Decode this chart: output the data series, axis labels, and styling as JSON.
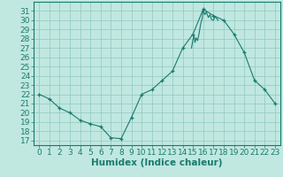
{
  "x": [
    0,
    1,
    2,
    3,
    4,
    5,
    6,
    7,
    8,
    9,
    10,
    11,
    12,
    13,
    14,
    15,
    16,
    17,
    18,
    19,
    20,
    21,
    22,
    23
  ],
  "y": [
    22.0,
    21.5,
    20.5,
    20.0,
    19.2,
    18.8,
    18.5,
    17.3,
    17.2,
    19.5,
    22.0,
    22.5,
    23.5,
    24.5,
    27.0,
    28.5,
    31.2,
    30.5,
    30.0,
    28.5,
    26.5,
    23.5,
    22.5,
    21.0
  ],
  "line_color": "#1a7a6e",
  "marker": "+",
  "marker_size": 3,
  "marker_color": "#1a7a6e",
  "bg_color": "#c0e8e0",
  "grid_color": "#90c8c0",
  "axis_color": "#1a7a6e",
  "xlabel": "Humidex (Indice chaleur)",
  "xlim": [
    -0.5,
    23.5
  ],
  "ylim": [
    16.5,
    32
  ],
  "yticks": [
    17,
    18,
    19,
    20,
    21,
    22,
    23,
    24,
    25,
    26,
    27,
    28,
    29,
    30,
    31
  ],
  "xticks": [
    0,
    1,
    2,
    3,
    4,
    5,
    6,
    7,
    8,
    9,
    10,
    11,
    12,
    13,
    14,
    15,
    16,
    17,
    18,
    19,
    20,
    21,
    22,
    23
  ],
  "font_size": 6.5,
  "xlabel_fontsize": 7.5,
  "spike_x": [
    14.85,
    15.0,
    15.1,
    15.2,
    15.3,
    15.45,
    15.6,
    15.75,
    15.9,
    16.0,
    16.15,
    16.3,
    16.5,
    16.65,
    16.8,
    17.0,
    17.15,
    17.3,
    17.45
  ],
  "spike_y": [
    27.0,
    27.9,
    28.3,
    27.6,
    28.1,
    27.8,
    28.6,
    29.6,
    30.2,
    31.2,
    30.6,
    30.9,
    30.3,
    30.6,
    30.1,
    30.0,
    30.4,
    30.2,
    30.0
  ]
}
